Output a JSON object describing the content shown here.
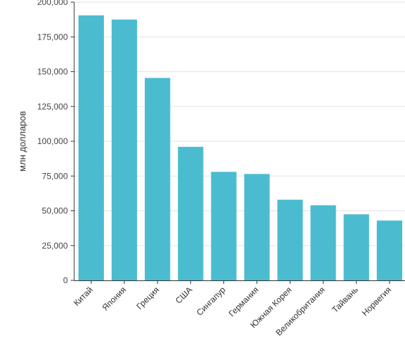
{
  "chart_data": {
    "type": "bar",
    "title": "",
    "xlabel": "",
    "ylabel": "млн долларов",
    "ylim": [
      0,
      200000
    ],
    "yticks": [
      0,
      25000,
      50000,
      75000,
      100000,
      125000,
      150000,
      175000,
      200000
    ],
    "ytick_labels": [
      "0",
      "25,000",
      "50,000",
      "75,000",
      "100,000",
      "125,000",
      "150,000",
      "175,000",
      "200,000"
    ],
    "grid": true,
    "bar_color": "#4BBCD0",
    "grid_color": "#E3E3E3",
    "axis_color": "#333333",
    "categories": [
      "Китай",
      "Япония",
      "Греция",
      "США",
      "Сингапур",
      "Германия",
      "Южная Корея",
      "Великобритания",
      "Тайвань",
      "Норвегия"
    ],
    "values": [
      190500,
      187500,
      145500,
      96000,
      78000,
      76500,
      58000,
      54000,
      47500,
      43000
    ]
  }
}
